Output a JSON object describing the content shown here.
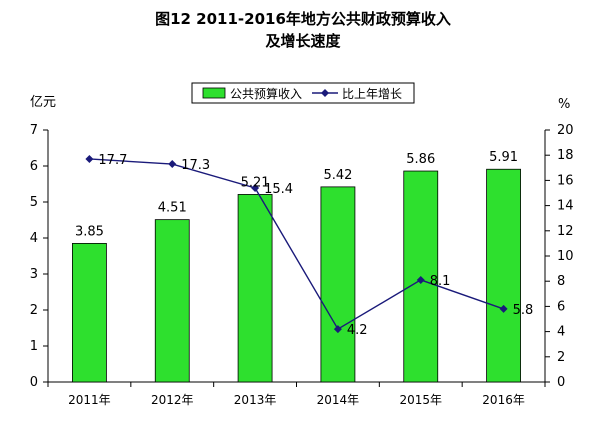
{
  "chart_data": {
    "type": "bar",
    "title": [
      "图12 2011-2016年地方公共财政预算收入",
      "及增长速度"
    ],
    "categories": [
      "2011年",
      "2012年",
      "2013年",
      "2014年",
      "2015年",
      "2016年"
    ],
    "series": [
      {
        "name": "公共预算收入",
        "type": "bar",
        "axis": "left",
        "values": [
          3.85,
          4.51,
          5.21,
          5.42,
          5.86,
          5.91
        ],
        "labels": [
          "3.85",
          "4.51",
          "5.21",
          "5.42",
          "5.86",
          "5.91"
        ],
        "color": "#2ee02e"
      },
      {
        "name": "比上年增长",
        "type": "line",
        "axis": "right",
        "values": [
          17.7,
          17.3,
          15.4,
          4.2,
          8.1,
          5.8
        ],
        "labels": [
          "17.7",
          "17.3",
          "15.4",
          "4.2",
          "8.1",
          "5.8"
        ],
        "color": "#1a1a7a"
      }
    ],
    "y_left": {
      "unit": "亿元",
      "range": [
        0,
        7
      ],
      "ticks": [
        "0",
        "1",
        "2",
        "3",
        "4",
        "5",
        "6",
        "7"
      ]
    },
    "y_right": {
      "unit": "%",
      "range": [
        0,
        20
      ],
      "ticks": [
        "0",
        "2",
        "4",
        "6",
        "8",
        "10",
        "12",
        "14",
        "16",
        "18",
        "20"
      ]
    },
    "legend_position": "top-center",
    "grid": false
  }
}
